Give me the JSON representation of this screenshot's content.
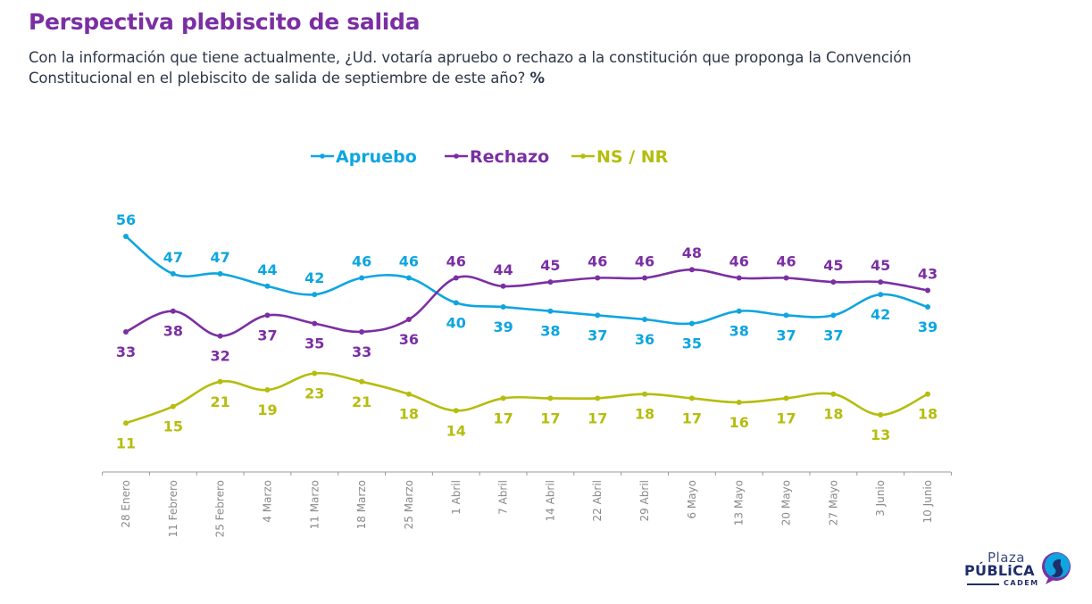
{
  "header": {
    "title": "Perspectiva plebiscito de salida",
    "subtitle": "Con la información que tiene actualmente, ¿Ud. votaría apruebo o rechazo a la constitución que proponga la Convención Constitucional en el plebiscito de salida de septiembre de este año?",
    "subtitle_unit": "%"
  },
  "colors": {
    "title": "#7b2fa3",
    "apruebo": "#0ea5e0",
    "rechazo": "#7b2fa3",
    "nsnr": "#b5bd0e",
    "axis": "#9a9a9a"
  },
  "chart_data": {
    "type": "line",
    "title": "Perspectiva plebiscito de salida",
    "xlabel": "",
    "ylabel": "%",
    "legend_position": "top-center",
    "grid": false,
    "smooth": true,
    "categories": [
      "28 Enero",
      "11 Febrero",
      "25 Febrero",
      "4 Marzo",
      "11 Marzo",
      "18 Marzo",
      "25 Marzo",
      "1 Abril",
      "7 Abril",
      "14 Abril",
      "22 Abril",
      "29 Abril",
      "6 Mayo",
      "13 Mayo",
      "20 Mayo",
      "27 Mayo",
      "3 Junio",
      "10 Junio"
    ],
    "series": [
      {
        "name": "Apruebo",
        "key": "apruebo",
        "values": [
          56,
          47,
          47,
          44,
          42,
          46,
          46,
          40,
          39,
          38,
          37,
          36,
          35,
          38,
          37,
          37,
          42,
          39
        ]
      },
      {
        "name": "Rechazo",
        "key": "rechazo",
        "values": [
          33,
          38,
          32,
          37,
          35,
          33,
          36,
          46,
          44,
          45,
          46,
          46,
          48,
          46,
          46,
          45,
          45,
          43
        ]
      },
      {
        "name": "NS / NR",
        "key": "nsnr",
        "values": [
          11,
          15,
          21,
          19,
          23,
          21,
          18,
          14,
          17,
          17,
          17,
          18,
          17,
          16,
          17,
          18,
          13,
          18
        ]
      }
    ],
    "label_positions": {
      "apruebo": [
        "above",
        "above",
        "above",
        "above",
        "above",
        "above",
        "above",
        "below",
        "below",
        "below",
        "below",
        "below",
        "below",
        "below",
        "below",
        "below",
        "below",
        "below"
      ],
      "rechazo": [
        "below",
        "below",
        "below",
        "below",
        "below",
        "below",
        "below",
        "above",
        "above",
        "above",
        "above",
        "above",
        "above",
        "above",
        "above",
        "above",
        "above",
        "above"
      ],
      "nsnr": [
        "below",
        "below",
        "below",
        "below",
        "below",
        "below",
        "below",
        "below",
        "below",
        "below",
        "below",
        "below",
        "below",
        "below",
        "below",
        "below",
        "below",
        "below"
      ]
    }
  },
  "logo": {
    "line1": "Plaza",
    "line2": "PÚBLiCA",
    "line3": "CADEM"
  }
}
